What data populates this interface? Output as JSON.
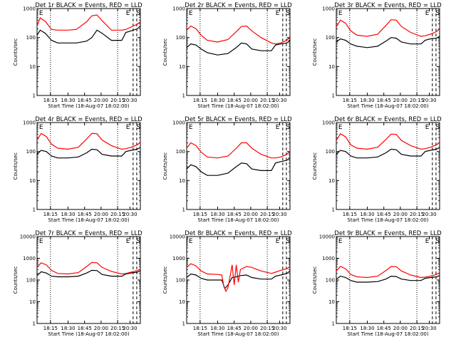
{
  "figure": {
    "colors": {
      "events": "#000000",
      "lld": "#ff0000",
      "background": "#ffffff"
    }
  },
  "chart_data": [
    {
      "type": "line",
      "title": "Det 1r BLACK = Events, RED = LLD",
      "xlabel": "Start Time (18-Aug-07 18:02:00)",
      "ylabel": "Counts/sec",
      "yscale": "log",
      "ylim": [
        1,
        1000
      ],
      "y_ticks": [
        "1",
        "10",
        "100",
        "1000"
      ],
      "x_ticks": [
        "18:15",
        "18:30",
        "18:45",
        "20:00",
        "20:15",
        "20:30"
      ],
      "corner_labels": [
        "E",
        "E",
        "S"
      ],
      "series": [
        {
          "name": "BLACK",
          "color": "#000000",
          "x": [
            0,
            3,
            8,
            14,
            20,
            30,
            38,
            48,
            53,
            58,
            63,
            72,
            82,
            86,
            91,
            97,
            100
          ],
          "y": [
            120,
            180,
            140,
            80,
            65,
            65,
            65,
            75,
            100,
            180,
            140,
            80,
            80,
            150,
            170,
            200,
            250
          ]
        },
        {
          "name": "RED",
          "color": "#ff0000",
          "x": [
            0,
            3,
            8,
            14,
            20,
            30,
            38,
            48,
            53,
            58,
            63,
            72,
            82,
            86,
            91,
            97,
            100
          ],
          "y": [
            250,
            480,
            360,
            190,
            180,
            180,
            190,
            350,
            560,
            600,
            380,
            180,
            180,
            190,
            230,
            290,
            350
          ]
        }
      ]
    },
    {
      "type": "line",
      "title": "Det 2r BLACK = Events, RED = LLD",
      "xlabel": "Start Time (18-Aug-07 18:02:00)",
      "ylabel": "Counts/sec",
      "yscale": "log",
      "ylim": [
        1,
        1000
      ],
      "y_ticks": [
        "1",
        "10",
        "100",
        "1000"
      ],
      "x_ticks": [
        "18:15",
        "18:30",
        "18:45",
        "20:00",
        "20:15",
        "20:30"
      ],
      "corner_labels": [
        "E",
        "E",
        "S"
      ],
      "series": [
        {
          "name": "BLACK",
          "color": "#000000",
          "x": [
            0,
            4,
            9,
            14,
            20,
            30,
            40,
            48,
            53,
            58,
            63,
            72,
            82,
            86,
            91,
            97,
            100
          ],
          "y": [
            45,
            60,
            55,
            40,
            30,
            25,
            28,
            45,
            65,
            60,
            40,
            35,
            35,
            55,
            60,
            65,
            80
          ]
        },
        {
          "name": "RED",
          "color": "#ff0000",
          "x": [
            0,
            4,
            9,
            14,
            20,
            30,
            40,
            48,
            53,
            58,
            63,
            72,
            82,
            86,
            91,
            97,
            100
          ],
          "y": [
            180,
            250,
            200,
            120,
            80,
            70,
            85,
            160,
            240,
            250,
            170,
            100,
            65,
            60,
            65,
            80,
            110
          ]
        }
      ]
    },
    {
      "type": "line",
      "title": "Det 3r BLACK = Events, RED = LLD",
      "xlabel": "Start Time (18-Aug-07 18:02:00)",
      "ylabel": "Counts/sec",
      "yscale": "log",
      "ylim": [
        1,
        1000
      ],
      "y_ticks": [
        "1",
        "10",
        "100",
        "1000"
      ],
      "x_ticks": [
        "18:15",
        "18:30",
        "18:45",
        "20:00",
        "20:15",
        "20:30"
      ],
      "corner_labels": [
        "E",
        "E",
        "S"
      ],
      "series": [
        {
          "name": "BLACK",
          "color": "#000000",
          "x": [
            0,
            4,
            9,
            14,
            20,
            30,
            40,
            48,
            53,
            58,
            63,
            72,
            82,
            86,
            91,
            97,
            100
          ],
          "y": [
            70,
            90,
            80,
            60,
            50,
            45,
            50,
            75,
            100,
            95,
            70,
            60,
            60,
            80,
            90,
            95,
            110
          ]
        },
        {
          "name": "RED",
          "color": "#ff0000",
          "x": [
            0,
            4,
            9,
            14,
            20,
            30,
            40,
            48,
            53,
            58,
            63,
            72,
            82,
            86,
            91,
            97,
            100
          ],
          "y": [
            230,
            400,
            310,
            170,
            120,
            110,
            130,
            260,
            410,
            400,
            240,
            150,
            110,
            115,
            130,
            160,
            200
          ]
        }
      ]
    },
    {
      "type": "line",
      "title": "Det 4r BLACK = Events, RED = LLD",
      "xlabel": "Start Time (18-Aug-07 18:02:00)",
      "ylabel": "Counts/sec",
      "yscale": "log",
      "ylim": [
        1,
        1000
      ],
      "y_ticks": [
        "1",
        "10",
        "100",
        "1000"
      ],
      "x_ticks": [
        "18:15",
        "18:30",
        "18:45",
        "20:00",
        "20:15",
        "20:30"
      ],
      "corner_labels": [
        "E",
        "E",
        "S"
      ],
      "series": [
        {
          "name": "BLACK",
          "color": "#000000",
          "x": [
            0,
            4,
            9,
            14,
            20,
            30,
            40,
            48,
            53,
            58,
            63,
            72,
            82,
            86,
            91,
            97,
            100
          ],
          "y": [
            80,
            110,
            100,
            70,
            60,
            60,
            65,
            90,
            120,
            115,
            80,
            70,
            70,
            100,
            110,
            120,
            140
          ]
        },
        {
          "name": "RED",
          "color": "#ff0000",
          "x": [
            0,
            4,
            9,
            14,
            20,
            30,
            40,
            48,
            53,
            58,
            63,
            72,
            82,
            86,
            91,
            97,
            100
          ],
          "y": [
            250,
            420,
            330,
            180,
            130,
            120,
            140,
            270,
            420,
            410,
            250,
            160,
            120,
            125,
            140,
            170,
            210
          ]
        }
      ]
    },
    {
      "type": "line",
      "title": "Det 5r BLACK = Events, RED = LLD",
      "xlabel": "Start Time (18-Aug-07 18:02:00)",
      "ylabel": "Counts/sec",
      "yscale": "log",
      "ylim": [
        1,
        1000
      ],
      "y_ticks": [
        "1",
        "10",
        "100",
        "1000"
      ],
      "x_ticks": [
        "18:15",
        "18:30",
        "18:45",
        "20:00",
        "20:15",
        "20:30"
      ],
      "corner_labels": [
        "E",
        "E",
        "S"
      ],
      "series": [
        {
          "name": "BLACK",
          "color": "#000000",
          "x": [
            0,
            4,
            9,
            14,
            20,
            30,
            40,
            48,
            53,
            58,
            63,
            72,
            82,
            86,
            91,
            97,
            100
          ],
          "y": [
            25,
            35,
            30,
            20,
            15,
            15,
            18,
            30,
            40,
            38,
            25,
            22,
            22,
            40,
            45,
            50,
            60
          ]
        },
        {
          "name": "RED",
          "color": "#ff0000",
          "x": [
            0,
            4,
            9,
            14,
            20,
            30,
            40,
            48,
            53,
            58,
            63,
            72,
            82,
            86,
            91,
            97,
            100
          ],
          "y": [
            130,
            200,
            160,
            95,
            65,
            60,
            70,
            130,
            200,
            200,
            130,
            80,
            60,
            60,
            65,
            80,
            100
          ]
        }
      ]
    },
    {
      "type": "line",
      "title": "Det 6r BLACK = Events, RED = LLD",
      "xlabel": "Start Time (18-Aug-07 18:02:00)",
      "ylabel": "Counts/sec",
      "yscale": "log",
      "ylim": [
        1,
        1000
      ],
      "y_ticks": [
        "1",
        "10",
        "100",
        "1000"
      ],
      "x_ticks": [
        "18:15",
        "18:30",
        "18:45",
        "20:00",
        "20:15",
        "20:30"
      ],
      "corner_labels": [
        "E",
        "E",
        "S"
      ],
      "series": [
        {
          "name": "BLACK",
          "color": "#000000",
          "x": [
            0,
            4,
            9,
            14,
            20,
            30,
            40,
            48,
            53,
            58,
            63,
            72,
            82,
            86,
            91,
            97,
            100
          ],
          "y": [
            80,
            110,
            100,
            70,
            60,
            60,
            65,
            90,
            120,
            115,
            80,
            70,
            70,
            100,
            110,
            120,
            140
          ]
        },
        {
          "name": "RED",
          "color": "#ff0000",
          "x": [
            0,
            4,
            9,
            14,
            20,
            30,
            40,
            48,
            53,
            58,
            63,
            72,
            82,
            86,
            91,
            97,
            100
          ],
          "y": [
            240,
            410,
            320,
            170,
            130,
            120,
            140,
            260,
            400,
            390,
            240,
            160,
            120,
            125,
            140,
            170,
            210
          ]
        }
      ]
    },
    {
      "type": "line",
      "title": "Det 7r BLACK = Events, RED = LLD",
      "xlabel": "Start Time (18-Aug-07 18:02:00)",
      "ylabel": "Counts/sec",
      "yscale": "log",
      "ylim": [
        1,
        10000
      ],
      "y_ticks": [
        "1",
        "10",
        "100",
        "1000",
        "10000"
      ],
      "x_ticks": [
        "18:15",
        "18:30",
        "18:45",
        "20:00",
        "20:15",
        "20:30"
      ],
      "corner_labels": [
        "E",
        "E",
        "S"
      ],
      "series": [
        {
          "name": "BLACK",
          "color": "#000000",
          "x": [
            0,
            4,
            9,
            14,
            20,
            30,
            40,
            48,
            53,
            58,
            63,
            72,
            82,
            86,
            91,
            97,
            100
          ],
          "y": [
            160,
            240,
            210,
            150,
            140,
            140,
            150,
            210,
            280,
            270,
            180,
            150,
            150,
            190,
            210,
            230,
            270
          ]
        },
        {
          "name": "RED",
          "color": "#ff0000",
          "x": [
            0,
            4,
            9,
            14,
            20,
            30,
            40,
            48,
            53,
            58,
            63,
            72,
            82,
            86,
            91,
            97,
            100
          ],
          "y": [
            380,
            620,
            500,
            280,
            200,
            190,
            220,
            420,
            640,
            620,
            380,
            250,
            190,
            200,
            230,
            270,
            320
          ]
        }
      ]
    },
    {
      "type": "line",
      "title": "Det 8r BLACK = Events, RED = LLD",
      "xlabel": "Start Time (18-Aug-07 18:02:00)",
      "ylabel": "Counts/sec",
      "yscale": "log",
      "ylim": [
        1,
        10000
      ],
      "y_ticks": [
        "1",
        "10",
        "100",
        "1000",
        "10000"
      ],
      "x_ticks": [
        "18:15",
        "18:30",
        "18:45",
        "20:00",
        "20:15",
        "20:30"
      ],
      "corner_labels": [
        "E",
        "E",
        "S"
      ],
      "series": [
        {
          "name": "BLACK",
          "color": "#000000",
          "x": [
            0,
            4,
            9,
            14,
            20,
            30,
            34,
            37,
            40,
            44,
            48,
            52,
            58,
            63,
            72,
            82,
            86,
            91,
            97,
            100
          ],
          "y": [
            130,
            190,
            170,
            120,
            100,
            100,
            100,
            40,
            60,
            130,
            140,
            160,
            170,
            130,
            110,
            110,
            150,
            170,
            200,
            260
          ]
        },
        {
          "name": "RED",
          "color": "#ff0000",
          "x": [
            0,
            4,
            9,
            14,
            20,
            30,
            34,
            36,
            38,
            40,
            44,
            46,
            48,
            50,
            52,
            58,
            63,
            72,
            82,
            86,
            91,
            97,
            100
          ],
          "y": [
            380,
            560,
            450,
            260,
            190,
            180,
            170,
            50,
            30,
            45,
            500,
            60,
            500,
            80,
            300,
            420,
            380,
            260,
            200,
            230,
            280,
            330,
            400
          ]
        }
      ]
    },
    {
      "type": "line",
      "title": "Det 9r BLACK = Events, RED = LLD",
      "xlabel": "Start Time (18-Aug-07 18:02:00)",
      "ylabel": "Counts/sec",
      "yscale": "log",
      "ylim": [
        1,
        10000
      ],
      "y_ticks": [
        "1",
        "10",
        "100",
        "1000",
        "10000"
      ],
      "x_ticks": [
        "18:15",
        "18:30",
        "18:45",
        "20:00",
        "20:15",
        "20:30"
      ],
      "corner_labels": [
        "E",
        "E",
        "S"
      ],
      "series": [
        {
          "name": "BLACK",
          "color": "#000000",
          "x": [
            0,
            4,
            9,
            14,
            20,
            30,
            40,
            48,
            53,
            58,
            63,
            72,
            82,
            86,
            91,
            97,
            100
          ],
          "y": [
            110,
            150,
            130,
            95,
            80,
            80,
            85,
            110,
            150,
            145,
            110,
            95,
            95,
            120,
            130,
            140,
            160
          ]
        },
        {
          "name": "RED",
          "color": "#ff0000",
          "x": [
            0,
            4,
            9,
            14,
            20,
            30,
            40,
            48,
            53,
            58,
            63,
            72,
            82,
            86,
            91,
            97,
            100
          ],
          "y": [
            260,
            420,
            330,
            180,
            140,
            130,
            150,
            270,
            420,
            410,
            260,
            170,
            130,
            135,
            150,
            180,
            220
          ]
        }
      ]
    }
  ]
}
